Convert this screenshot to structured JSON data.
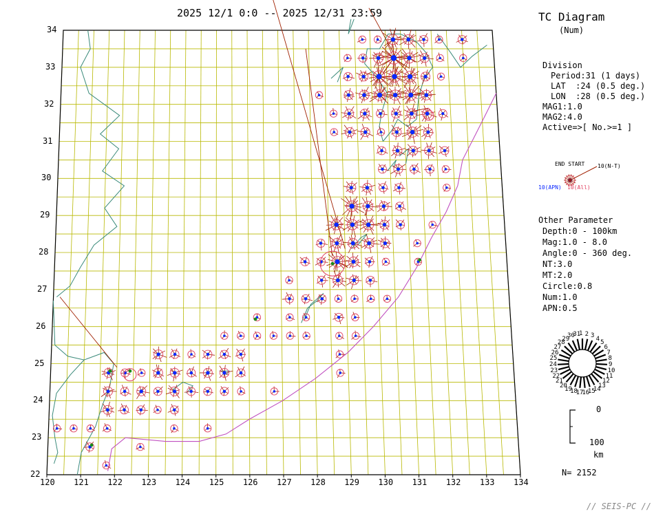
{
  "header": {
    "period_text": "2025 12/1 0:0 -- 2025 12/31 23:59"
  },
  "legend": {
    "title": "TC Diagram",
    "subtitle": "(Num)",
    "division_title": "Division",
    "division_lines": [
      "Period:31 (1 days)",
      "LAT  :24 (0.5 deg.)",
      "LON  :28 (0.5 deg.)"
    ],
    "mag_lines": [
      "MAG1:1.0",
      "MAG2:4.0",
      "Active=>[ No.>=1 ]"
    ],
    "symbol_labels": {
      "end_start": "END START",
      "nt": "10(N-T)",
      "apn": "10(APN)",
      "all": "10(All)"
    },
    "other_title": "Other Parameter",
    "other_lines": [
      "Depth:0 - 100km",
      "Mag:1.0 - 8.0",
      "Angle:0 - 360 deg.",
      "NT:3.0",
      "MT:2.0",
      "Circle:0.8",
      "Num:1.0",
      "APN:0.5"
    ],
    "depth_scale": {
      "top": "0",
      "bottom": "100",
      "unit": "km"
    },
    "total": "N= 2152",
    "watermark": "// SEIS-PC //",
    "day_wheel_labels": [
      "1",
      "2",
      "3",
      "4",
      "5",
      "6",
      "7",
      "8",
      "9",
      "10",
      "11",
      "12",
      "13",
      "14",
      "15",
      "16",
      "17",
      "18",
      "19",
      "20",
      "21",
      "22",
      "23",
      "24",
      "25",
      "26",
      "27",
      "28",
      "29",
      "30",
      "31"
    ]
  },
  "map_data": {
    "lon_range": [
      120,
      134
    ],
    "lat_range": [
      22,
      34
    ],
    "lon_ticks": [
      120,
      121,
      122,
      123,
      124,
      125,
      126,
      127,
      128,
      129,
      130,
      131,
      132,
      133,
      134
    ],
    "lat_ticks": [
      22,
      23,
      24,
      25,
      26,
      27,
      28,
      29,
      30,
      31,
      32,
      33,
      34
    ],
    "colors": {
      "grid": "#b8b800",
      "coast": "#3a8a7a",
      "trench": "#c050c0",
      "circle": "#e04060",
      "spoke": "#a02000",
      "apn": "#0a28ff",
      "green": "#1a8a1a"
    },
    "cells": [
      [
        129.75,
        33.75,
        1,
        0
      ],
      [
        130.25,
        33.75,
        1,
        0
      ],
      [
        130.75,
        33.75,
        5,
        3
      ],
      [
        131.25,
        33.75,
        4,
        2
      ],
      [
        131.75,
        33.75,
        2,
        1
      ],
      [
        132.25,
        33.75,
        1,
        0
      ],
      [
        133,
        33.75,
        2,
        1
      ],
      [
        129.25,
        33.25,
        1,
        0
      ],
      [
        129.75,
        33.25,
        2,
        1
      ],
      [
        130.25,
        33.25,
        4,
        2
      ],
      [
        130.75,
        33.25,
        9,
        6
      ],
      [
        131.25,
        33.25,
        5,
        3
      ],
      [
        131.75,
        33.25,
        3,
        2
      ],
      [
        132.25,
        33.25,
        1,
        0
      ],
      [
        133,
        33.25,
        1,
        0
      ],
      [
        129.25,
        32.75,
        2,
        1
      ],
      [
        129.75,
        32.75,
        3,
        2
      ],
      [
        130.25,
        32.75,
        8,
        5
      ],
      [
        130.75,
        32.75,
        7,
        4
      ],
      [
        131.25,
        32.75,
        6,
        4
      ],
      [
        131.75,
        32.75,
        3,
        2
      ],
      [
        132.25,
        32.75,
        1,
        0
      ],
      [
        128.3,
        32.25,
        1,
        0
      ],
      [
        129.25,
        32.25,
        3,
        1
      ],
      [
        129.75,
        32.25,
        4,
        2
      ],
      [
        130.25,
        32.25,
        6,
        4
      ],
      [
        130.75,
        32.25,
        5,
        3
      ],
      [
        131.25,
        32.25,
        6,
        4
      ],
      [
        131.75,
        32.25,
        4,
        2
      ],
      [
        128.75,
        31.75,
        1,
        0
      ],
      [
        129.25,
        31.75,
        3,
        1
      ],
      [
        129.75,
        31.75,
        3,
        2
      ],
      [
        130.25,
        31.75,
        2,
        1
      ],
      [
        130.75,
        31.75,
        3,
        2
      ],
      [
        131.25,
        31.75,
        4,
        2
      ],
      [
        131.75,
        31.75,
        4,
        2
      ],
      [
        132.25,
        31.75,
        2,
        0
      ],
      [
        128.75,
        31.25,
        1,
        0
      ],
      [
        129.25,
        31.25,
        3,
        1
      ],
      [
        129.75,
        31.25,
        3,
        2
      ],
      [
        130.25,
        31.25,
        1,
        0
      ],
      [
        130.75,
        31.25,
        3,
        1
      ],
      [
        131.25,
        31.25,
        5,
        3
      ],
      [
        131.75,
        31.25,
        3,
        1
      ],
      [
        130.25,
        30.75,
        2,
        1
      ],
      [
        130.75,
        30.75,
        3,
        2
      ],
      [
        131.25,
        30.75,
        3,
        2
      ],
      [
        131.75,
        30.75,
        3,
        1
      ],
      [
        132.25,
        30.75,
        2,
        1
      ],
      [
        132.25,
        30.25,
        1,
        0
      ],
      [
        130.25,
        30.25,
        2,
        1
      ],
      [
        130.75,
        30.25,
        3,
        1
      ],
      [
        131.25,
        30.25,
        2,
        1
      ],
      [
        131.75,
        30.25,
        2,
        1
      ],
      [
        129.25,
        29.75,
        3,
        1
      ],
      [
        129.75,
        29.75,
        3,
        2
      ],
      [
        130.25,
        29.75,
        2,
        1
      ],
      [
        130.75,
        29.75,
        2,
        1
      ],
      [
        132.25,
        29.75,
        1,
        0
      ],
      [
        129.25,
        29.25,
        6,
        4
      ],
      [
        129.75,
        29.25,
        4,
        3
      ],
      [
        130.25,
        29.25,
        3,
        2
      ],
      [
        130.75,
        29.25,
        2,
        1
      ],
      [
        128.75,
        28.75,
        5,
        3
      ],
      [
        129.25,
        28.75,
        5,
        3
      ],
      [
        129.75,
        28.75,
        5,
        3
      ],
      [
        130.25,
        28.75,
        3,
        2
      ],
      [
        130.75,
        28.75,
        2,
        1
      ],
      [
        131.75,
        28.75,
        1,
        0
      ],
      [
        128.25,
        28.25,
        2,
        1
      ],
      [
        128.75,
        28.25,
        4,
        2
      ],
      [
        129.25,
        28.25,
        4,
        3
      ],
      [
        129.75,
        28.25,
        4,
        2
      ],
      [
        130.25,
        28.25,
        3,
        2
      ],
      [
        131.25,
        28.25,
        1,
        0
      ],
      [
        127.75,
        27.75,
        2,
        1
      ],
      [
        128.25,
        27.75,
        2,
        1
      ],
      [
        128.75,
        27.75,
        6,
        4
      ],
      [
        129.25,
        27.75,
        4,
        2
      ],
      [
        129.75,
        27.75,
        2,
        1
      ],
      [
        130.25,
        27.75,
        1,
        0
      ],
      [
        131.25,
        27.75,
        1,
        0
      ],
      [
        128.25,
        27.25,
        2,
        1
      ],
      [
        128.75,
        27.25,
        4,
        2
      ],
      [
        129.25,
        27.25,
        3,
        2
      ],
      [
        129.75,
        27.25,
        2,
        1
      ],
      [
        127.25,
        27.25,
        1,
        0
      ],
      [
        127.25,
        26.75,
        2,
        1
      ],
      [
        127.75,
        26.75,
        2,
        1
      ],
      [
        128.25,
        26.75,
        2,
        1
      ],
      [
        128.75,
        26.75,
        1,
        0
      ],
      [
        129.25,
        26.75,
        1,
        0
      ],
      [
        129.75,
        26.75,
        1,
        0
      ],
      [
        130.25,
        26.75,
        1,
        0
      ],
      [
        126.25,
        26.25,
        1,
        0
      ],
      [
        127.25,
        26.25,
        1,
        0
      ],
      [
        127.75,
        26.25,
        1,
        0
      ],
      [
        128.75,
        26.25,
        2,
        1
      ],
      [
        129.25,
        26.25,
        1,
        0
      ],
      [
        125.25,
        25.75,
        1,
        0
      ],
      [
        125.75,
        25.75,
        1,
        0
      ],
      [
        126.25,
        25.75,
        1,
        0
      ],
      [
        126.75,
        25.75,
        1,
        0
      ],
      [
        127.25,
        25.75,
        1,
        0
      ],
      [
        127.75,
        25.75,
        1,
        0
      ],
      [
        128.75,
        25.75,
        1,
        0
      ],
      [
        129.25,
        25.75,
        1,
        0
      ],
      [
        123.25,
        25.25,
        3,
        2
      ],
      [
        123.75,
        25.25,
        2,
        1
      ],
      [
        124.25,
        25.25,
        1,
        0
      ],
      [
        124.75,
        25.25,
        2,
        1
      ],
      [
        125.25,
        25.25,
        2,
        1
      ],
      [
        125.75,
        25.25,
        2,
        1
      ],
      [
        128.75,
        25.25,
        1,
        0
      ],
      [
        121.75,
        24.75,
        3,
        1
      ],
      [
        122.25,
        24.75,
        2,
        1
      ],
      [
        122.75,
        24.75,
        1,
        0
      ],
      [
        123.25,
        24.75,
        3,
        2
      ],
      [
        123.75,
        24.75,
        3,
        2
      ],
      [
        124.25,
        24.75,
        2,
        1
      ],
      [
        124.75,
        24.75,
        3,
        2
      ],
      [
        125.25,
        24.75,
        3,
        2
      ],
      [
        125.75,
        24.75,
        2,
        1
      ],
      [
        128.75,
        24.75,
        1,
        0
      ],
      [
        121.75,
        24.25,
        3,
        1
      ],
      [
        122.25,
        24.25,
        2,
        1
      ],
      [
        122.75,
        24.25,
        3,
        2
      ],
      [
        123.25,
        24.25,
        2,
        1
      ],
      [
        123.75,
        24.25,
        3,
        2
      ],
      [
        124.25,
        24.25,
        2,
        1
      ],
      [
        124.75,
        24.25,
        2,
        1
      ],
      [
        125.25,
        24.25,
        2,
        1
      ],
      [
        125.75,
        24.25,
        1,
        0
      ],
      [
        126.75,
        24.25,
        1,
        0
      ],
      [
        121.75,
        23.75,
        3,
        1
      ],
      [
        122.25,
        23.75,
        2,
        1
      ],
      [
        122.75,
        23.75,
        2,
        1
      ],
      [
        123.25,
        23.75,
        1,
        0
      ],
      [
        123.75,
        23.75,
        2,
        1
      ],
      [
        120.25,
        23.25,
        1,
        0
      ],
      [
        120.75,
        23.25,
        1,
        0
      ],
      [
        121.25,
        23.25,
        1,
        0
      ],
      [
        121.75,
        23.25,
        1,
        0
      ],
      [
        123.75,
        23.25,
        1,
        0
      ],
      [
        124.75,
        23.25,
        1,
        0
      ],
      [
        121.25,
        22.75,
        2,
        1
      ],
      [
        122.75,
        22.75,
        1,
        0
      ],
      [
        121.75,
        22.25,
        1,
        0
      ]
    ]
  }
}
